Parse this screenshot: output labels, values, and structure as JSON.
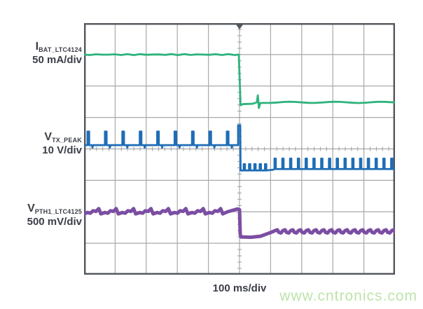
{
  "watermark": {
    "text": "www.cntronics.com",
    "color": "#bfe3ab"
  },
  "chart_data": {
    "type": "line",
    "title": "",
    "xlabel": "100 ms/div",
    "x_divisions": 10,
    "y_divisions": 8,
    "trigger_position_div": 5,
    "grid": {
      "line_color": "#a9a9a9",
      "border_color": "#53575d",
      "tick_color": "#9aa0a6",
      "background": "#ffffff"
    },
    "series": [
      {
        "id": "ibat",
        "label_main": "I",
        "label_sub": "BAT_LTC4124",
        "scale_label": "50 mA/div",
        "color": "#2eb37c",
        "waveform": {
          "kind": "step_down",
          "level_before_div": 1.0,
          "level_after_div": 2.52,
          "step_at_div": 5.0,
          "glitch_at_div": 5.6
        }
      },
      {
        "id": "vtx_peak",
        "label_main": "V",
        "label_sub": "TX_PEAK",
        "scale_label": "10 V/div",
        "color": "#1e6db6",
        "waveform": {
          "kind": "pulsed_step_down",
          "baseline_before_div": 3.88,
          "pulse_top_before_div": 3.45,
          "pulse_period_before_div": 0.56,
          "transition_pulse_top_div": 3.25,
          "baseline_after_div": 4.64,
          "pulse_top_after_div": 4.31,
          "pulse_period_after_div": 0.25,
          "step_at_div": 5.0
        }
      },
      {
        "id": "vpth1",
        "label_main": "V",
        "label_sub": "PTH1_LTC4125",
        "scale_label": "500 mV/div",
        "color": "#7c4ea3",
        "waveform": {
          "kind": "sawtooth_step_down",
          "center_before_div": 6.0,
          "ramp_amplitude_div": 0.2,
          "ramp_period_before_div": 0.56,
          "dip_after_div": 6.8,
          "center_after_div": 6.63,
          "ripple_period_after_div": 0.25,
          "step_at_div": 5.0
        }
      }
    ]
  }
}
